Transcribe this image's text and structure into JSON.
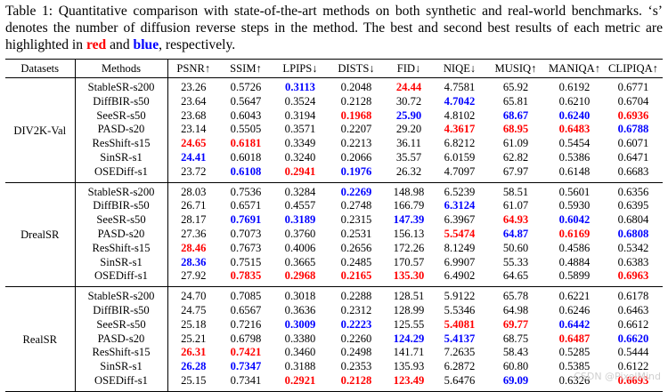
{
  "caption": {
    "part1": "Table 1: Quantitative comparison with state-of-the-art methods on both synthetic and real-world benchmarks. ‘s’ denotes the number of diffusion reverse steps in the method. The best and second best results of each metric are highlighted in ",
    "red_word": "red",
    "part2": " and ",
    "blue_word": "blue",
    "part3": ", respectively."
  },
  "colors": {
    "best": "#ff0000",
    "second": "#0000ff"
  },
  "table": {
    "headers": [
      "Datasets",
      "Methods",
      "PSNR↑",
      "SSIM↑",
      "LPIPS↓",
      "DISTS↓",
      "FID↓",
      "NIQE↓",
      "MUSIQ↑",
      "MANIQA↑",
      "CLIPIQA↑"
    ],
    "groups": [
      {
        "dataset": "DIV2K-Val",
        "rows": [
          {
            "method": "StableSR-s200",
            "values": [
              "23.26",
              "0.5726",
              "0.3113",
              "0.2048",
              "24.44",
              "4.7581",
              "65.92",
              "0.6192",
              "0.6771"
            ],
            "marks": [
              "",
              "",
              "second",
              "",
              "best",
              "",
              "",
              "",
              ""
            ]
          },
          {
            "method": "DiffBIR-s50",
            "values": [
              "23.64",
              "0.5647",
              "0.3524",
              "0.2128",
              "30.72",
              "4.7042",
              "65.81",
              "0.6210",
              "0.6704"
            ],
            "marks": [
              "",
              "",
              "",
              "",
              "",
              "second",
              "",
              "",
              ""
            ]
          },
          {
            "method": "SeeSR-s50",
            "values": [
              "23.68",
              "0.6043",
              "0.3194",
              "0.1968",
              "25.90",
              "4.8102",
              "68.67",
              "0.6240",
              "0.6936"
            ],
            "marks": [
              "",
              "",
              "",
              "best",
              "second",
              "",
              "second",
              "second",
              "best"
            ]
          },
          {
            "method": "PASD-s20",
            "values": [
              "23.14",
              "0.5505",
              "0.3571",
              "0.2207",
              "29.20",
              "4.3617",
              "68.95",
              "0.6483",
              "0.6788"
            ],
            "marks": [
              "",
              "",
              "",
              "",
              "",
              "best",
              "best",
              "best",
              "second"
            ]
          },
          {
            "method": "ResShift-s15",
            "values": [
              "24.65",
              "0.6181",
              "0.3349",
              "0.2213",
              "36.11",
              "6.8212",
              "61.09",
              "0.5454",
              "0.6071"
            ],
            "marks": [
              "best",
              "best",
              "",
              "",
              "",
              "",
              "",
              "",
              ""
            ]
          },
          {
            "method": "SinSR-s1",
            "values": [
              "24.41",
              "0.6018",
              "0.3240",
              "0.2066",
              "35.57",
              "6.0159",
              "62.82",
              "0.5386",
              "0.6471"
            ],
            "marks": [
              "second",
              "",
              "",
              "",
              "",
              "",
              "",
              "",
              ""
            ]
          },
          {
            "method": "OSEDiff-s1",
            "values": [
              "23.72",
              "0.6108",
              "0.2941",
              "0.1976",
              "26.32",
              "4.7097",
              "67.97",
              "0.6148",
              "0.6683"
            ],
            "marks": [
              "",
              "second",
              "best",
              "second",
              "",
              "",
              "",
              "",
              ""
            ]
          }
        ]
      },
      {
        "dataset": "DrealSR",
        "rows": [
          {
            "method": "StableSR-s200",
            "values": [
              "28.03",
              "0.7536",
              "0.3284",
              "0.2269",
              "148.98",
              "6.5239",
              "58.51",
              "0.5601",
              "0.6356"
            ],
            "marks": [
              "",
              "",
              "",
              "second",
              "",
              "",
              "",
              "",
              ""
            ]
          },
          {
            "method": "DiffBIR-s50",
            "values": [
              "26.71",
              "0.6571",
              "0.4557",
              "0.2748",
              "166.79",
              "6.3124",
              "61.07",
              "0.5930",
              "0.6395"
            ],
            "marks": [
              "",
              "",
              "",
              "",
              "",
              "second",
              "",
              "",
              ""
            ]
          },
          {
            "method": "SeeSR-s50",
            "values": [
              "28.17",
              "0.7691",
              "0.3189",
              "0.2315",
              "147.39",
              "6.3967",
              "64.93",
              "0.6042",
              "0.6804"
            ],
            "marks": [
              "",
              "second",
              "second",
              "",
              "second",
              "",
              "best",
              "second",
              ""
            ]
          },
          {
            "method": "PASD-s20",
            "values": [
              "27.36",
              "0.7073",
              "0.3760",
              "0.2531",
              "156.13",
              "5.5474",
              "64.87",
              "0.6169",
              "0.6808"
            ],
            "marks": [
              "",
              "",
              "",
              "",
              "",
              "best",
              "second",
              "best",
              "second"
            ]
          },
          {
            "method": "ResShift-s15",
            "values": [
              "28.46",
              "0.7673",
              "0.4006",
              "0.2656",
              "172.26",
              "8.1249",
              "50.60",
              "0.4586",
              "0.5342"
            ],
            "marks": [
              "best",
              "",
              "",
              "",
              "",
              "",
              "",
              "",
              ""
            ]
          },
          {
            "method": "SinSR-s1",
            "values": [
              "28.36",
              "0.7515",
              "0.3665",
              "0.2485",
              "170.57",
              "6.9907",
              "55.33",
              "0.4884",
              "0.6383"
            ],
            "marks": [
              "second",
              "",
              "",
              "",
              "",
              "",
              "",
              "",
              ""
            ]
          },
          {
            "method": "OSEDiff-s1",
            "values": [
              "27.92",
              "0.7835",
              "0.2968",
              "0.2165",
              "135.30",
              "6.4902",
              "64.65",
              "0.5899",
              "0.6963"
            ],
            "marks": [
              "",
              "best",
              "best",
              "best",
              "best",
              "",
              "",
              "",
              "best"
            ]
          }
        ]
      },
      {
        "dataset": "RealSR",
        "rows": [
          {
            "method": "StableSR-s200",
            "values": [
              "24.70",
              "0.7085",
              "0.3018",
              "0.2288",
              "128.51",
              "5.9122",
              "65.78",
              "0.6221",
              "0.6178"
            ],
            "marks": [
              "",
              "",
              "",
              "",
              "",
              "",
              "",
              "",
              ""
            ]
          },
          {
            "method": "DiffBIR-s50",
            "values": [
              "24.75",
              "0.6567",
              "0.3636",
              "0.2312",
              "128.99",
              "5.5346",
              "64.98",
              "0.6246",
              "0.6463"
            ],
            "marks": [
              "",
              "",
              "",
              "",
              "",
              "",
              "",
              "",
              ""
            ]
          },
          {
            "method": "SeeSR-s50",
            "values": [
              "25.18",
              "0.7216",
              "0.3009",
              "0.2223",
              "125.55",
              "5.4081",
              "69.77",
              "0.6442",
              "0.6612"
            ],
            "marks": [
              "",
              "",
              "second",
              "second",
              "",
              "best",
              "best",
              "second",
              ""
            ]
          },
          {
            "method": "PASD-s20",
            "values": [
              "25.21",
              "0.6798",
              "0.3380",
              "0.2260",
              "124.29",
              "5.4137",
              "68.75",
              "0.6487",
              "0.6620"
            ],
            "marks": [
              "",
              "",
              "",
              "",
              "second",
              "second",
              "",
              "best",
              "second"
            ]
          },
          {
            "method": "ResShift-s15",
            "values": [
              "26.31",
              "0.7421",
              "0.3460",
              "0.2498",
              "141.71",
              "7.2635",
              "58.43",
              "0.5285",
              "0.5444"
            ],
            "marks": [
              "best",
              "best",
              "",
              "",
              "",
              "",
              "",
              "",
              ""
            ]
          },
          {
            "method": "SinSR-s1",
            "values": [
              "26.28",
              "0.7347",
              "0.3188",
              "0.2353",
              "135.93",
              "6.2872",
              "60.80",
              "0.5385",
              "0.6122"
            ],
            "marks": [
              "second",
              "second",
              "",
              "",
              "",
              "",
              "",
              "",
              ""
            ]
          },
          {
            "method": "OSEDiff-s1",
            "values": [
              "25.15",
              "0.7341",
              "0.2921",
              "0.2128",
              "123.49",
              "5.6476",
              "69.09",
              "0.6326",
              "0.6693"
            ],
            "marks": [
              "",
              "",
              "best",
              "best",
              "best",
              "",
              "second",
              "",
              "best"
            ]
          }
        ]
      }
    ]
  },
  "watermark": "CSDN @PixelMind"
}
